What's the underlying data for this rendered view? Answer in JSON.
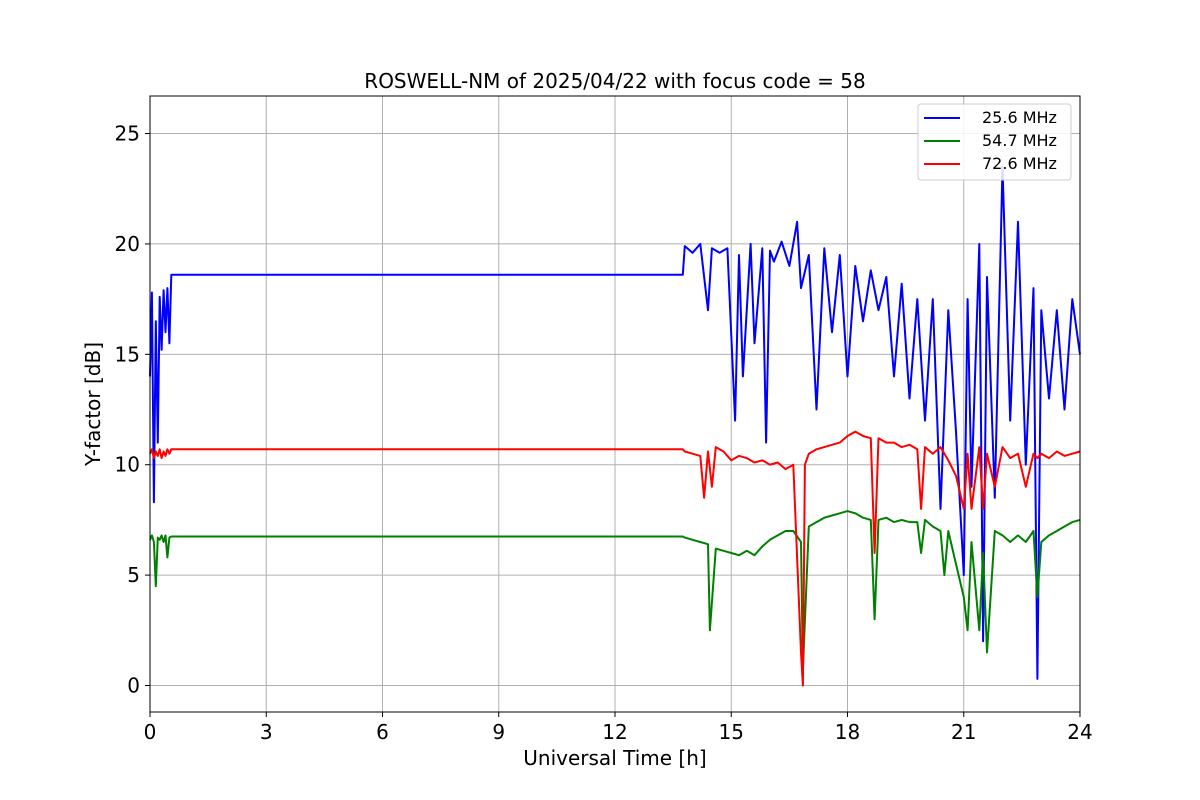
{
  "chart_data": {
    "type": "line",
    "title": "ROSWELL-NM of 2025/04/22 with focus code = 58",
    "xlabel": "Universal Time [h]",
    "ylabel": "Y-factor [dB]",
    "xlim": [
      0,
      24
    ],
    "ylim": [
      -1.2,
      26.7
    ],
    "xticks": [
      0,
      3,
      6,
      9,
      12,
      15,
      18,
      21,
      24
    ],
    "yticks": [
      0,
      5,
      10,
      15,
      20,
      25
    ],
    "xtick_labels": [
      "0",
      "3",
      "6",
      "9",
      "12",
      "15",
      "18",
      "21",
      "24"
    ],
    "ytick_labels": [
      "0",
      "5",
      "10",
      "15",
      "20",
      "25"
    ],
    "grid": true,
    "legend_position": "top-right",
    "series": [
      {
        "name": "25.6 MHz",
        "color": "#0000ff",
        "x": [
          0.0,
          0.05,
          0.1,
          0.15,
          0.2,
          0.25,
          0.3,
          0.35,
          0.4,
          0.45,
          0.5,
          0.55,
          13.75,
          13.8,
          14.0,
          14.2,
          14.4,
          14.5,
          14.7,
          14.9,
          15.1,
          15.2,
          15.3,
          15.5,
          15.6,
          15.8,
          15.9,
          16.0,
          16.1,
          16.3,
          16.5,
          16.7,
          16.8,
          17.0,
          17.2,
          17.4,
          17.6,
          17.8,
          18.0,
          18.2,
          18.4,
          18.6,
          18.8,
          19.0,
          19.2,
          19.4,
          19.6,
          19.8,
          20.0,
          20.2,
          20.4,
          20.6,
          20.8,
          21.0,
          21.1,
          21.2,
          21.4,
          21.5,
          21.6,
          21.8,
          22.0,
          22.2,
          22.4,
          22.6,
          22.8,
          22.9,
          23.0,
          23.2,
          23.4,
          23.6,
          23.8,
          24.0
        ],
        "values": [
          14.0,
          17.8,
          8.3,
          16.5,
          11.0,
          17.6,
          15.2,
          17.9,
          16.0,
          18.0,
          15.5,
          18.6,
          18.6,
          19.9,
          19.6,
          20.0,
          17.0,
          19.8,
          19.6,
          19.8,
          12.0,
          19.5,
          14.0,
          20.0,
          15.5,
          19.8,
          11.0,
          19.7,
          19.2,
          20.1,
          19.0,
          21.0,
          18.0,
          19.5,
          12.5,
          19.8,
          16.0,
          19.5,
          14.0,
          19.0,
          16.5,
          18.8,
          17.0,
          18.5,
          14.0,
          18.2,
          13.0,
          17.5,
          12.0,
          17.5,
          8.0,
          17.0,
          11.5,
          5.0,
          17.5,
          9.0,
          20.0,
          2.0,
          18.5,
          8.5,
          23.5,
          12.0,
          21.0,
          10.0,
          18.0,
          0.3,
          17.0,
          13.0,
          17.0,
          12.5,
          17.5,
          15.0
        ]
      },
      {
        "name": "54.7 MHz",
        "color": "#008000",
        "x": [
          0.0,
          0.05,
          0.1,
          0.15,
          0.2,
          0.25,
          0.3,
          0.35,
          0.4,
          0.45,
          0.5,
          0.55,
          13.75,
          13.8,
          14.0,
          14.2,
          14.4,
          14.45,
          14.6,
          14.8,
          15.0,
          15.2,
          15.4,
          15.6,
          15.8,
          16.0,
          16.2,
          16.4,
          16.6,
          16.8,
          16.85,
          17.0,
          17.2,
          17.4,
          17.6,
          17.8,
          18.0,
          18.2,
          18.4,
          18.6,
          18.7,
          18.8,
          19.0,
          19.2,
          19.4,
          19.6,
          19.8,
          19.9,
          20.0,
          20.2,
          20.4,
          20.5,
          20.6,
          20.8,
          21.0,
          21.1,
          21.2,
          21.4,
          21.5,
          21.6,
          21.8,
          22.0,
          22.2,
          22.4,
          22.6,
          22.8,
          22.9,
          23.0,
          23.2,
          23.4,
          23.6,
          23.8,
          24.0
        ],
        "values": [
          6.6,
          6.8,
          6.5,
          4.5,
          6.7,
          6.6,
          6.8,
          6.5,
          6.8,
          5.8,
          6.7,
          6.75,
          6.75,
          6.7,
          6.6,
          6.5,
          6.4,
          2.5,
          6.2,
          6.1,
          6.0,
          5.9,
          6.1,
          5.9,
          6.3,
          6.6,
          6.8,
          7.0,
          7.0,
          6.5,
          0.7,
          7.2,
          7.4,
          7.6,
          7.7,
          7.8,
          7.9,
          7.8,
          7.6,
          7.5,
          3.0,
          7.5,
          7.6,
          7.4,
          7.5,
          7.4,
          7.4,
          6.0,
          7.5,
          7.2,
          7.0,
          5.0,
          7.0,
          5.5,
          4.0,
          2.5,
          6.5,
          2.5,
          6.0,
          1.5,
          7.0,
          6.8,
          6.5,
          6.8,
          6.5,
          7.0,
          4.0,
          6.5,
          6.8,
          7.0,
          7.2,
          7.4,
          7.5
        ]
      },
      {
        "name": "72.6 MHz",
        "color": "#ff0000",
        "x": [
          0.0,
          0.05,
          0.1,
          0.15,
          0.2,
          0.25,
          0.3,
          0.35,
          0.4,
          0.45,
          0.5,
          0.55,
          13.75,
          13.8,
          14.0,
          14.2,
          14.3,
          14.4,
          14.5,
          14.6,
          14.8,
          15.0,
          15.2,
          15.4,
          15.6,
          15.8,
          16.0,
          16.2,
          16.4,
          16.6,
          16.8,
          16.85,
          16.9,
          17.0,
          17.2,
          17.4,
          17.6,
          17.8,
          18.0,
          18.2,
          18.4,
          18.6,
          18.7,
          18.8,
          19.0,
          19.2,
          19.4,
          19.6,
          19.8,
          19.9,
          20.0,
          20.2,
          20.4,
          20.6,
          20.8,
          21.0,
          21.1,
          21.2,
          21.4,
          21.5,
          21.6,
          21.8,
          22.0,
          22.2,
          22.4,
          22.6,
          22.8,
          22.9,
          23.0,
          23.2,
          23.4,
          23.6,
          23.8,
          24.0
        ],
        "values": [
          10.5,
          10.7,
          10.3,
          10.6,
          10.4,
          10.7,
          10.3,
          10.6,
          10.4,
          10.7,
          10.5,
          10.7,
          10.7,
          10.6,
          10.5,
          10.4,
          8.5,
          10.6,
          9.0,
          10.8,
          10.6,
          10.2,
          10.4,
          10.3,
          10.1,
          10.2,
          10.0,
          10.1,
          9.8,
          10.0,
          1.5,
          0.0,
          10.0,
          10.5,
          10.7,
          10.8,
          10.9,
          11.0,
          11.3,
          11.5,
          11.3,
          11.2,
          6.0,
          11.2,
          11.0,
          11.0,
          10.8,
          10.9,
          10.7,
          8.0,
          10.8,
          10.5,
          10.8,
          10.2,
          9.5,
          8.0,
          10.5,
          8.0,
          10.8,
          8.0,
          10.5,
          9.0,
          10.8,
          10.3,
          10.5,
          9.0,
          10.5,
          10.3,
          10.5,
          10.3,
          10.6,
          10.4,
          10.5,
          10.6
        ]
      }
    ]
  }
}
